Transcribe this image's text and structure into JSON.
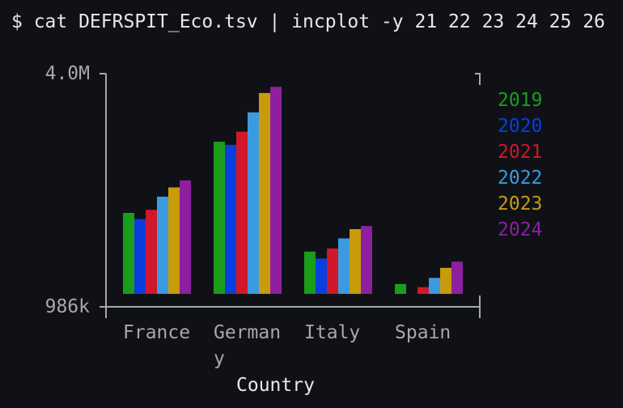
{
  "command": "$ cat DEFRSPIT_Eco.tsv | incplot -y 21 22 23 24 25 26",
  "chart_data": {
    "type": "bar",
    "x_label": "Country",
    "categories": [
      "France",
      "Germany",
      "Italy",
      "Spain"
    ],
    "series": [
      {
        "name": "2019",
        "color": "#1a9e1a",
        "values": [
          2200000,
          3120000,
          1700000,
          1280000
        ]
      },
      {
        "name": "2020",
        "color": "#0a3fdd",
        "values": [
          2120000,
          3080000,
          1610000,
          null
        ]
      },
      {
        "name": "2021",
        "color": "#d0182a",
        "values": [
          2240000,
          3250000,
          1740000,
          1240000
        ]
      },
      {
        "name": "2022",
        "color": "#3a9be0",
        "values": [
          2410000,
          3500000,
          1870000,
          1360000
        ]
      },
      {
        "name": "2023",
        "color": "#c89b0a",
        "values": [
          2530000,
          3750000,
          1990000,
          1490000
        ]
      },
      {
        "name": "2024",
        "color": "#8e1fa0",
        "values": [
          2620000,
          3830000,
          2030000,
          1570000
        ]
      }
    ],
    "ylim": [
      986000,
      4000000
    ],
    "yticks": [
      {
        "value": 986000,
        "label": "986k"
      },
      {
        "value": 4000000,
        "label": "4.0M"
      }
    ],
    "legend": "top-right"
  }
}
